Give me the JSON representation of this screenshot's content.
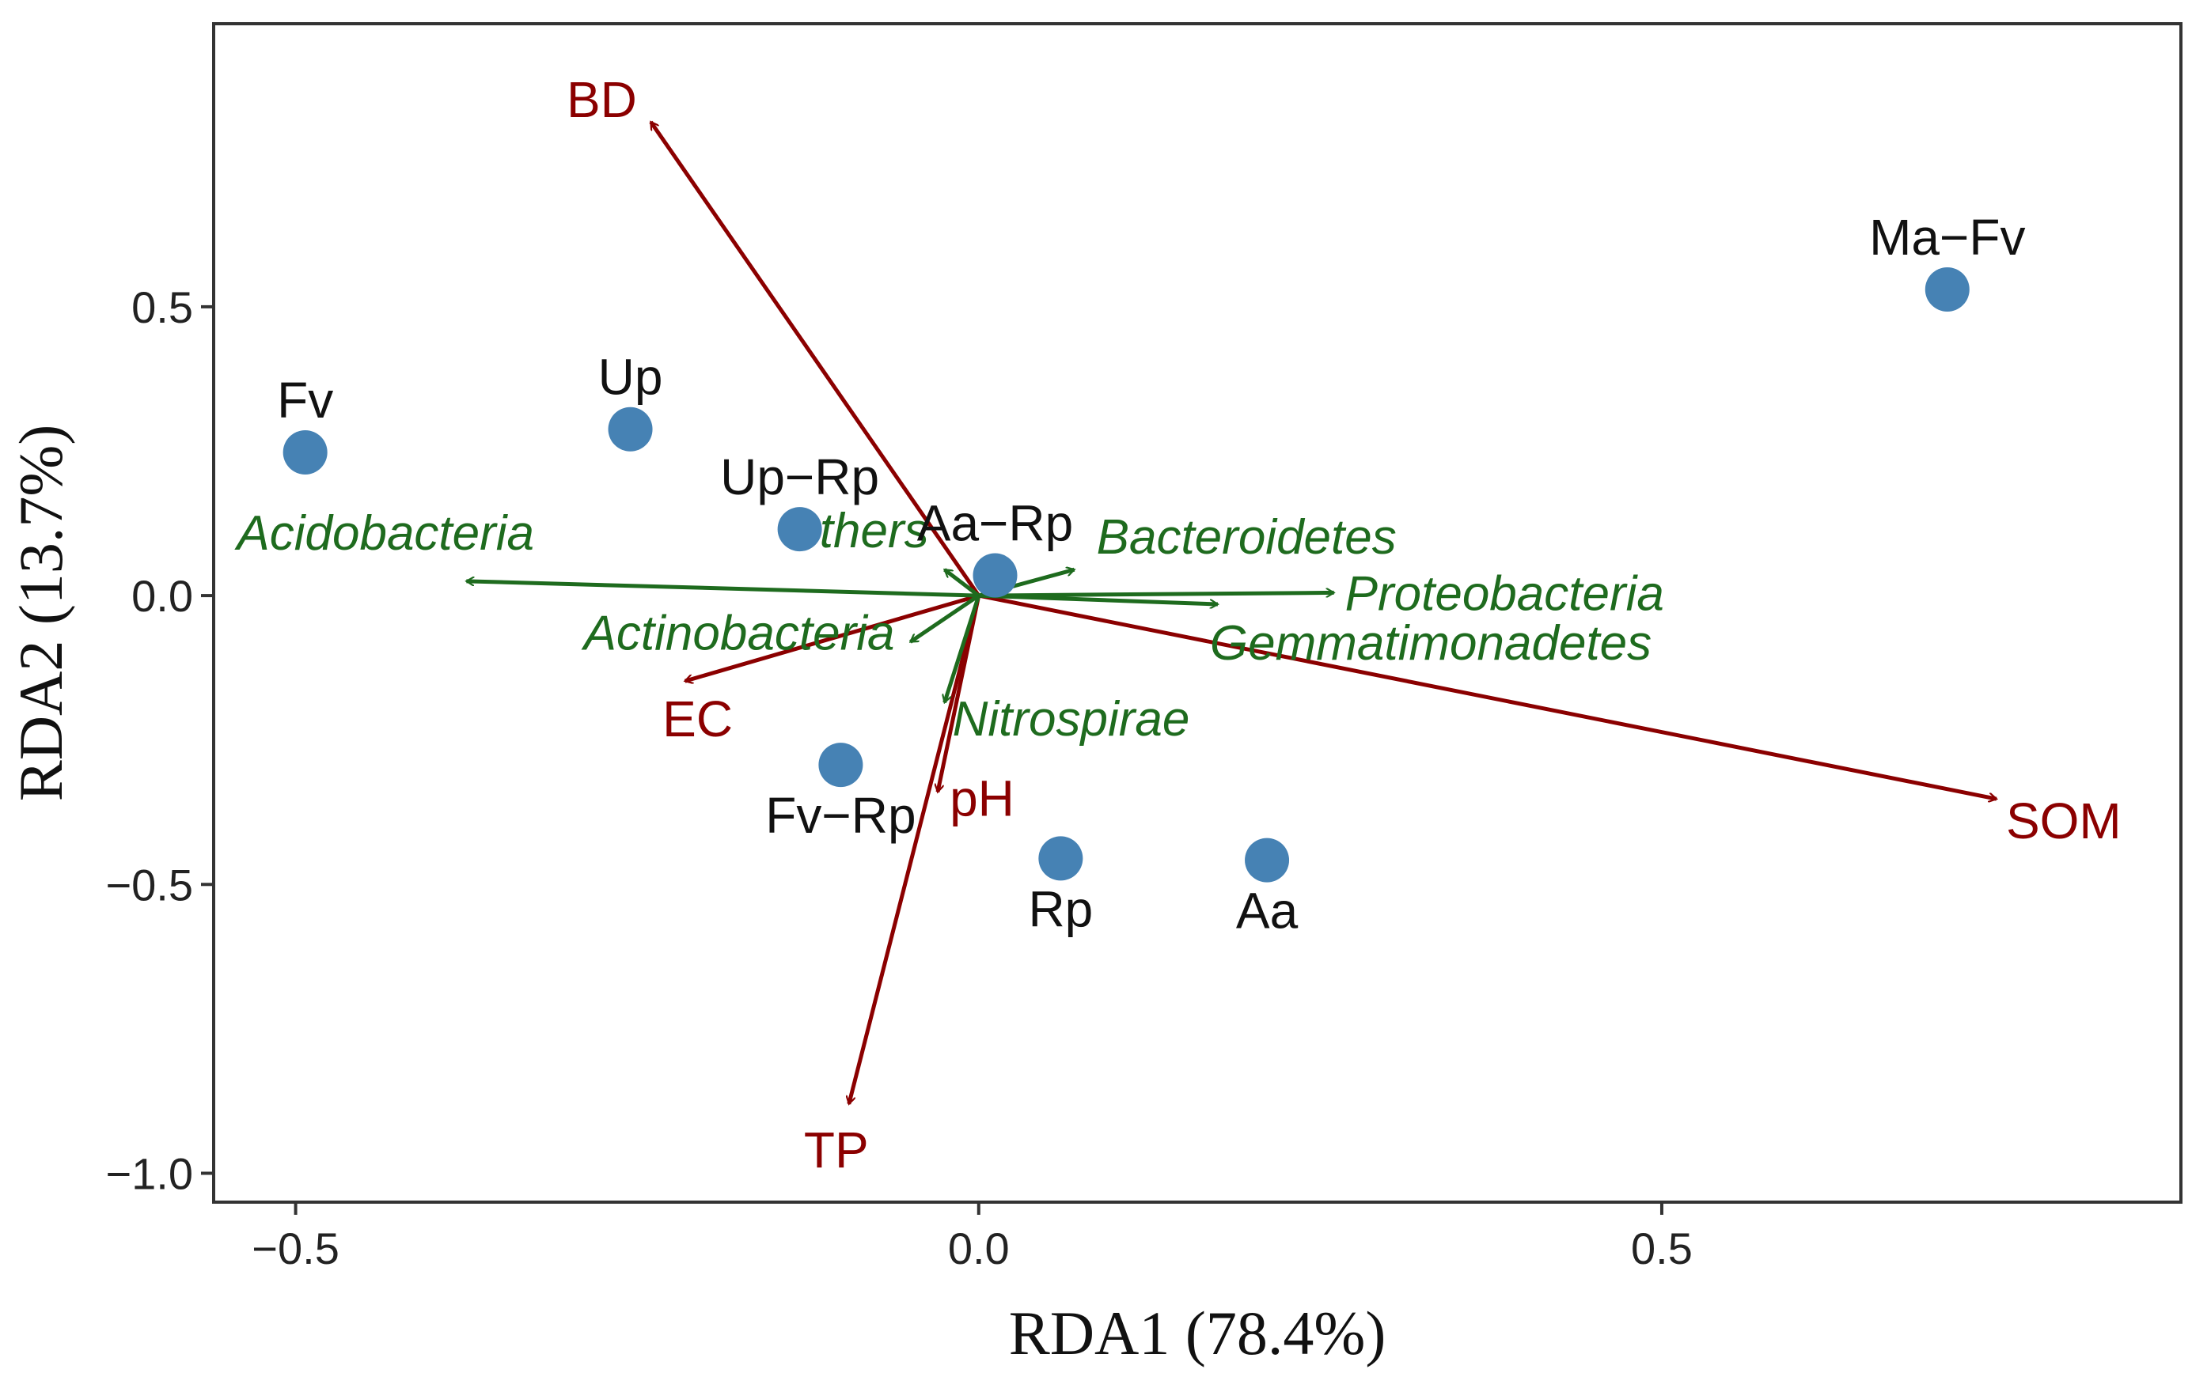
{
  "chart_data": {
    "type": "scatter",
    "xlabel": "RDA1 (78.4%)",
    "ylabel": "RDA2 (13.7%)",
    "xlim": [
      -0.56,
      0.88
    ],
    "ylim": [
      -1.05,
      0.99
    ],
    "x_ticks": [
      -0.5,
      0.0,
      0.5
    ],
    "x_tick_labels": [
      "−0.5",
      "0.0",
      "0.5"
    ],
    "y_ticks": [
      0.5,
      0.0,
      -0.5,
      -1.0
    ],
    "y_tick_labels": [
      "0.5",
      "0.0",
      "−0.5",
      "−1.0"
    ],
    "grid": false,
    "colors": {
      "points": "#4682B4",
      "environment": "#8B0000",
      "taxa": "#1E6B1E",
      "frame": "#333333"
    },
    "sites": [
      {
        "name": "Fv",
        "x": -0.493,
        "y": 0.248,
        "label_pos": "above"
      },
      {
        "name": "Up",
        "x": -0.255,
        "y": 0.288,
        "label_pos": "above"
      },
      {
        "name": "Up−Rp",
        "x": -0.131,
        "y": 0.115,
        "label_pos": "above"
      },
      {
        "name": "Aa−Rp",
        "x": 0.012,
        "y": 0.035,
        "label_pos": "above"
      },
      {
        "name": "Ma−Fv",
        "x": 0.709,
        "y": 0.53,
        "label_pos": "above"
      },
      {
        "name": "Fv−Rp",
        "x": -0.101,
        "y": -0.293,
        "label_pos": "below"
      },
      {
        "name": "Rp",
        "x": 0.06,
        "y": -0.455,
        "label_pos": "below"
      },
      {
        "name": "Aa",
        "x": 0.211,
        "y": -0.458,
        "label_pos": "below"
      }
    ],
    "environmental_vectors": [
      {
        "name": "BD",
        "x": -0.24,
        "y": 0.82
      },
      {
        "name": "SOM",
        "x": 0.745,
        "y": -0.352
      },
      {
        "name": "EC",
        "x": -0.215,
        "y": -0.148
      },
      {
        "name": "pH",
        "x": -0.03,
        "y": -0.34
      },
      {
        "name": "TP",
        "x": -0.095,
        "y": -0.88
      }
    ],
    "taxa_vectors": [
      {
        "name": "Acidobacteria",
        "x": -0.375,
        "y": 0.025
      },
      {
        "name": "Others",
        "x": -0.025,
        "y": 0.045
      },
      {
        "name": "Bacteroidetes",
        "x": 0.07,
        "y": 0.045
      },
      {
        "name": "Proteobacteria",
        "x": 0.26,
        "y": 0.005
      },
      {
        "name": "Gemmatimonadetes",
        "x": 0.175,
        "y": -0.015
      },
      {
        "name": "Actinobacteria",
        "x": -0.05,
        "y": -0.08
      },
      {
        "name": "Nitrospirae",
        "x": -0.025,
        "y": -0.185
      }
    ]
  }
}
